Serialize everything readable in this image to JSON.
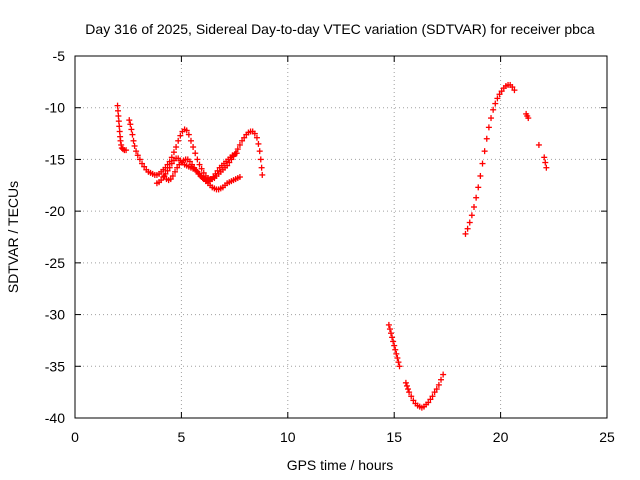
{
  "chart_data": {
    "type": "scatter",
    "title": "Day 316 of 2025, Sidereal Day-to-day VTEC variation (SDTVAR) for receiver pbca",
    "xlabel": "GPS time / hours",
    "ylabel": "SDTVAR / TECUs",
    "xlim": [
      0,
      25
    ],
    "ylim": [
      -40,
      -5
    ],
    "xticks": [
      "0",
      "5",
      "10",
      "15",
      "20",
      "25"
    ],
    "yticks": [
      "-40",
      "-35",
      "-30",
      "-25",
      "-20",
      "-15",
      "-10",
      "-5"
    ],
    "grid": true,
    "marker": "plus",
    "color": "#ff0000",
    "series": [
      {
        "points": [
          [
            2.0,
            -9.8
          ],
          [
            2.02,
            -10.3
          ],
          [
            2.04,
            -10.8
          ],
          [
            2.06,
            -11.3
          ],
          [
            2.08,
            -11.8
          ],
          [
            2.1,
            -12.3
          ],
          [
            2.12,
            -12.8
          ],
          [
            2.14,
            -13.2
          ],
          [
            2.17,
            -13.6
          ],
          [
            2.2,
            -13.9
          ],
          [
            2.25,
            -14.0
          ],
          [
            2.32,
            -14.1
          ],
          [
            2.4,
            -14.1
          ],
          [
            2.55,
            -11.2
          ],
          [
            2.6,
            -11.6
          ],
          [
            2.65,
            -12.1
          ],
          [
            2.7,
            -12.6
          ],
          [
            2.75,
            -13.2
          ],
          [
            2.8,
            -13.7
          ],
          [
            2.87,
            -14.2
          ],
          [
            2.95,
            -14.6
          ],
          [
            3.05,
            -15.0
          ],
          [
            3.15,
            -15.4
          ],
          [
            3.25,
            -15.7
          ],
          [
            3.35,
            -16.0
          ],
          [
            3.45,
            -16.2
          ],
          [
            3.55,
            -16.3
          ],
          [
            3.65,
            -16.4
          ],
          [
            3.75,
            -16.5
          ],
          [
            3.85,
            -16.5
          ],
          [
            3.95,
            -16.4
          ],
          [
            4.05,
            -16.2
          ],
          [
            4.15,
            -16.0
          ],
          [
            4.25,
            -15.8
          ],
          [
            4.35,
            -15.5
          ],
          [
            4.45,
            -15.2
          ],
          [
            4.55,
            -14.8
          ],
          [
            4.65,
            -14.3
          ],
          [
            4.75,
            -13.8
          ],
          [
            4.85,
            -13.2
          ],
          [
            4.95,
            -12.7
          ],
          [
            5.05,
            -12.3
          ],
          [
            5.15,
            -12.1
          ],
          [
            5.25,
            -12.2
          ],
          [
            5.35,
            -12.6
          ],
          [
            5.45,
            -13.2
          ],
          [
            5.55,
            -13.8
          ],
          [
            5.65,
            -14.4
          ],
          [
            5.75,
            -15.0
          ],
          [
            5.85,
            -15.5
          ],
          [
            5.95,
            -15.9
          ],
          [
            6.05,
            -16.3
          ],
          [
            6.15,
            -16.6
          ],
          [
            6.25,
            -16.8
          ],
          [
            6.35,
            -16.9
          ],
          [
            6.45,
            -16.9
          ],
          [
            6.55,
            -16.8
          ],
          [
            6.65,
            -16.6
          ],
          [
            6.75,
            -16.4
          ],
          [
            6.85,
            -16.2
          ],
          [
            6.95,
            -16.0
          ],
          [
            7.05,
            -15.8
          ],
          [
            7.15,
            -15.6
          ],
          [
            7.25,
            -15.3
          ],
          [
            7.35,
            -15.0
          ],
          [
            7.45,
            -14.7
          ],
          [
            7.55,
            -14.4
          ],
          [
            7.65,
            -14.0
          ],
          [
            7.75,
            -13.6
          ],
          [
            7.85,
            -13.2
          ],
          [
            7.95,
            -12.9
          ],
          [
            8.05,
            -12.6
          ],
          [
            8.15,
            -12.4
          ],
          [
            8.25,
            -12.3
          ],
          [
            8.35,
            -12.3
          ],
          [
            8.45,
            -12.5
          ],
          [
            8.55,
            -12.9
          ],
          [
            8.62,
            -13.5
          ],
          [
            8.68,
            -14.2
          ],
          [
            8.73,
            -15.0
          ],
          [
            8.77,
            -15.8
          ],
          [
            8.8,
            -16.5
          ],
          [
            3.85,
            -17.3
          ],
          [
            3.95,
            -17.2
          ],
          [
            4.05,
            -17.0
          ],
          [
            4.15,
            -16.7
          ],
          [
            4.25,
            -16.4
          ],
          [
            4.35,
            -16.1
          ],
          [
            4.45,
            -15.8
          ],
          [
            4.55,
            -15.4
          ],
          [
            4.65,
            -15.1
          ],
          [
            4.75,
            -14.9
          ],
          [
            4.85,
            -14.9
          ],
          [
            4.95,
            -15.1
          ],
          [
            5.05,
            -15.3
          ],
          [
            5.15,
            -15.5
          ],
          [
            5.25,
            -15.6
          ],
          [
            5.35,
            -15.7
          ],
          [
            5.45,
            -15.8
          ],
          [
            5.55,
            -15.9
          ],
          [
            5.65,
            -16.0
          ],
          [
            5.75,
            -16.2
          ],
          [
            5.85,
            -16.4
          ],
          [
            5.95,
            -16.7
          ],
          [
            6.05,
            -16.9
          ],
          [
            6.15,
            -17.1
          ],
          [
            6.25,
            -17.3
          ],
          [
            6.35,
            -17.5
          ],
          [
            6.45,
            -17.7
          ],
          [
            6.55,
            -17.8
          ],
          [
            6.65,
            -17.9
          ],
          [
            6.75,
            -17.9
          ],
          [
            6.85,
            -17.8
          ],
          [
            6.95,
            -17.7
          ],
          [
            7.05,
            -17.5
          ],
          [
            7.15,
            -17.3
          ],
          [
            7.25,
            -17.2
          ],
          [
            7.35,
            -17.1
          ],
          [
            7.45,
            -17.0
          ],
          [
            7.55,
            -16.9
          ],
          [
            7.65,
            -16.8
          ],
          [
            7.75,
            -16.7
          ],
          [
            4.2,
            -16.6
          ],
          [
            4.3,
            -16.9
          ],
          [
            4.4,
            -17.0
          ],
          [
            4.5,
            -16.9
          ],
          [
            4.6,
            -16.6
          ],
          [
            4.7,
            -16.2
          ],
          [
            4.8,
            -15.8
          ],
          [
            4.9,
            -15.5
          ],
          [
            5.0,
            -15.3
          ],
          [
            5.1,
            -15.1
          ],
          [
            5.2,
            -15.0
          ],
          [
            5.3,
            -15.0
          ],
          [
            5.4,
            -15.2
          ],
          [
            5.5,
            -15.5
          ],
          [
            5.6,
            -15.8
          ],
          [
            5.7,
            -16.1
          ],
          [
            5.8,
            -16.4
          ],
          [
            5.9,
            -16.6
          ],
          [
            6.0,
            -16.8
          ],
          [
            6.1,
            -16.9
          ],
          [
            6.2,
            -17.0
          ],
          [
            6.3,
            -17.0
          ],
          [
            6.4,
            -16.9
          ],
          [
            6.5,
            -16.7
          ],
          [
            6.6,
            -16.4
          ],
          [
            6.7,
            -16.1
          ],
          [
            6.8,
            -15.8
          ],
          [
            6.9,
            -15.6
          ],
          [
            7.0,
            -15.4
          ],
          [
            7.1,
            -15.2
          ],
          [
            7.2,
            -15.0
          ],
          [
            7.3,
            -14.8
          ],
          [
            7.4,
            -14.6
          ],
          [
            7.5,
            -14.5
          ],
          [
            7.6,
            -14.4
          ],
          [
            14.75,
            -31.0
          ],
          [
            14.8,
            -31.4
          ],
          [
            14.85,
            -31.8
          ],
          [
            14.9,
            -32.2
          ],
          [
            14.95,
            -32.6
          ],
          [
            15.0,
            -33.0
          ],
          [
            15.05,
            -33.4
          ],
          [
            15.1,
            -33.8
          ],
          [
            15.15,
            -34.2
          ],
          [
            15.2,
            -34.6
          ],
          [
            15.25,
            -35.0
          ],
          [
            15.55,
            -36.6
          ],
          [
            15.6,
            -36.9
          ],
          [
            15.65,
            -37.2
          ],
          [
            15.7,
            -37.5
          ],
          [
            15.8,
            -37.9
          ],
          [
            15.9,
            -38.3
          ],
          [
            16.0,
            -38.6
          ],
          [
            16.1,
            -38.8
          ],
          [
            16.2,
            -38.9
          ],
          [
            16.3,
            -39.0
          ],
          [
            16.4,
            -38.9
          ],
          [
            16.5,
            -38.7
          ],
          [
            16.6,
            -38.5
          ],
          [
            16.7,
            -38.2
          ],
          [
            16.8,
            -37.9
          ],
          [
            16.9,
            -37.5
          ],
          [
            17.0,
            -37.2
          ],
          [
            17.1,
            -36.8
          ],
          [
            17.2,
            -36.3
          ],
          [
            17.3,
            -35.8
          ],
          [
            18.35,
            -22.2
          ],
          [
            18.45,
            -21.7
          ],
          [
            18.55,
            -21.1
          ],
          [
            18.65,
            -20.4
          ],
          [
            18.75,
            -19.6
          ],
          [
            18.85,
            -18.7
          ],
          [
            18.95,
            -17.7
          ],
          [
            19.05,
            -16.6
          ],
          [
            19.15,
            -15.4
          ],
          [
            19.25,
            -14.2
          ],
          [
            19.35,
            -13.0
          ],
          [
            19.45,
            -11.9
          ],
          [
            19.55,
            -11.0
          ],
          [
            19.65,
            -10.2
          ],
          [
            19.75,
            -9.6
          ],
          [
            19.85,
            -9.1
          ],
          [
            19.95,
            -8.7
          ],
          [
            20.05,
            -8.4
          ],
          [
            20.15,
            -8.1
          ],
          [
            20.25,
            -7.9
          ],
          [
            20.35,
            -7.8
          ],
          [
            20.45,
            -7.8
          ],
          [
            20.55,
            -8.0
          ],
          [
            20.65,
            -8.3
          ],
          [
            21.2,
            -10.6
          ],
          [
            21.25,
            -10.8
          ],
          [
            21.3,
            -11.0
          ],
          [
            21.8,
            -13.6
          ],
          [
            22.05,
            -14.8
          ],
          [
            22.1,
            -15.3
          ],
          [
            22.15,
            -15.8
          ]
        ]
      }
    ]
  }
}
